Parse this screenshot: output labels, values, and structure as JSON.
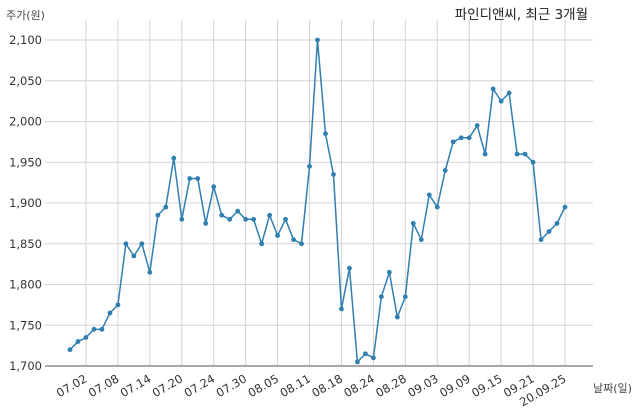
{
  "chart_data": {
    "type": "line",
    "title": "파인디앤씨, 최근 3개월",
    "ylabel": "주가(원)",
    "xlabel": "날짜(일)",
    "ylim": [
      1700,
      2100
    ],
    "yticks": [
      1700,
      1750,
      1800,
      1850,
      1900,
      1950,
      2000,
      2050,
      2100
    ],
    "ytick_labels": [
      "1,700",
      "1,750",
      "1,800",
      "1,850",
      "1,900",
      "1,950",
      "2,000",
      "2,050",
      "2,100"
    ],
    "xtick_labels": [
      "07.02",
      "07.08",
      "07.14",
      "07.20",
      "07.24",
      "07.30",
      "08.05",
      "08.11",
      "08.18",
      "08.24",
      "08.28",
      "09.03",
      "09.09",
      "09.15",
      "09.21",
      "20.09.25"
    ],
    "xtick_index": [
      2,
      6,
      10,
      14,
      18,
      22,
      26,
      30,
      34,
      38,
      42,
      46,
      50,
      54,
      58,
      62
    ],
    "grid": true,
    "line_color": "#2f7fb0",
    "series": [
      {
        "values": [
          1720,
          1730,
          1735,
          1745,
          1745,
          1765,
          1775,
          1850,
          1835,
          1850,
          1815,
          1885,
          1895,
          1955,
          1880,
          1930,
          1930,
          1875,
          1920,
          1885,
          1880,
          1890,
          1880,
          1880,
          1850,
          1885,
          1860,
          1880,
          1855,
          1850,
          1945,
          2100,
          1985,
          1935,
          1770,
          1820,
          1705,
          1715,
          1710,
          1785,
          1815,
          1760,
          1785,
          1875,
          1855,
          1910,
          1895,
          1940,
          1975,
          1980,
          1980,
          1995,
          1960,
          2040,
          2025,
          2035,
          1960,
          1960,
          1950,
          1855,
          1865,
          1875,
          1895
        ]
      }
    ]
  }
}
